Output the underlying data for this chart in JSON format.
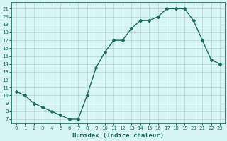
{
  "x": [
    0,
    1,
    2,
    3,
    4,
    5,
    6,
    7,
    8,
    9,
    10,
    11,
    12,
    13,
    14,
    15,
    16,
    17,
    18,
    19,
    20,
    21,
    22,
    23
  ],
  "y": [
    10.5,
    10.0,
    9.0,
    8.5,
    8.0,
    7.5,
    7.0,
    7.0,
    10.0,
    13.5,
    15.5,
    17.0,
    17.0,
    18.5,
    19.5,
    19.5,
    20.0,
    21.0,
    21.0,
    21.0,
    19.5,
    17.0,
    14.5,
    14.0
  ],
  "line_color": "#1a6b5a",
  "marker": "D",
  "marker_size": 2.0,
  "bg_color": "#d8f5f5",
  "grid_color": "#aed4d4",
  "xlabel": "Humidex (Indice chaleur)",
  "xlim": [
    -0.5,
    23.5
  ],
  "ylim": [
    6.5,
    21.8
  ],
  "yticks": [
    7,
    8,
    9,
    10,
    11,
    12,
    13,
    14,
    15,
    16,
    17,
    18,
    19,
    20,
    21
  ],
  "xticks": [
    0,
    1,
    2,
    3,
    4,
    5,
    6,
    7,
    8,
    9,
    10,
    11,
    12,
    13,
    14,
    15,
    16,
    17,
    18,
    19,
    20,
    21,
    22,
    23
  ],
  "tick_fontsize": 5.2,
  "xlabel_fontsize": 6.5,
  "linewidth": 1.0
}
